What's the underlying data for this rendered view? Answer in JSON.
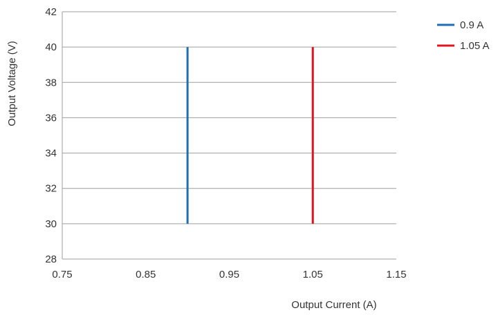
{
  "chart_data": {
    "type": "line",
    "xlabel": "Output Current (A)",
    "ylabel": "Output Voltage (V)",
    "xlim": [
      0.75,
      1.15
    ],
    "ylim": [
      28,
      42
    ],
    "xticks": [
      "0.75",
      "0.85",
      "0.95",
      "1.05",
      "1.15"
    ],
    "yticks": [
      "28",
      "30",
      "32",
      "34",
      "36",
      "38",
      "40",
      "42"
    ],
    "grid": "horizontal",
    "legend_position": "top-right",
    "series": [
      {
        "name": "0.9 A",
        "color": "#1a6fb5",
        "x": [
          0.9,
          0.9
        ],
        "y": [
          30,
          40
        ]
      },
      {
        "name": "1.05 A",
        "color": "#e0141e",
        "x": [
          1.05,
          1.05
        ],
        "y": [
          30,
          40
        ]
      }
    ]
  }
}
